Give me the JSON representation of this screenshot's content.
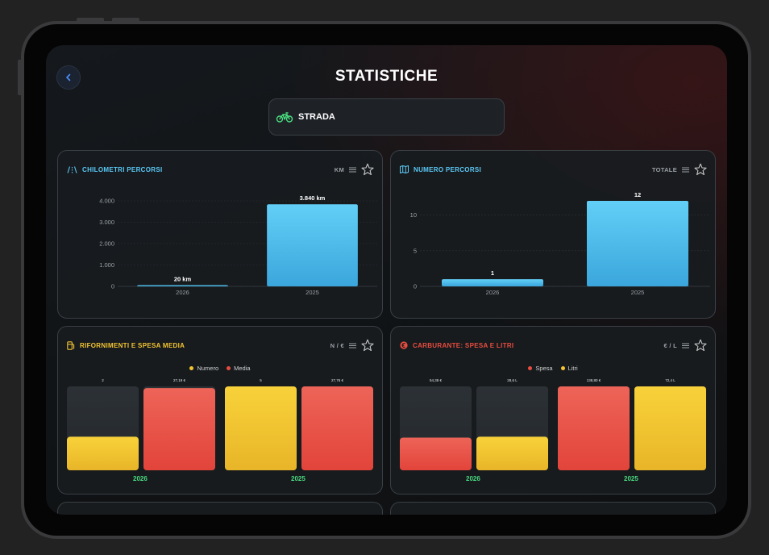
{
  "header": {
    "title": "STATISTICHE"
  },
  "selector": {
    "label": "STRADA",
    "icon": "motorcycle-icon"
  },
  "colors": {
    "blue": "#5bc8f5",
    "yellow": "#f5c531",
    "red": "#ea4c3f",
    "green": "#4ade80",
    "empty_bar": "#2a2e33"
  },
  "cards": [
    {
      "title": "CHILOMETRI PERCORSI",
      "unit": "KM",
      "title_color": "#5bc8f5",
      "icon": "road-icon"
    },
    {
      "title": "NUMERO PERCORSI",
      "unit": "TOTALE",
      "title_color": "#5bc8f5",
      "icon": "map-icon"
    },
    {
      "title": "RIFORNIMENTI E SPESA MEDIA",
      "unit": "N / €",
      "title_color": "#f5c531",
      "icon": "fuel-icon",
      "legend": [
        "Numero",
        "Media"
      ]
    },
    {
      "title": "CARBURANTE: SPESA E LITRI",
      "unit": "€ / L",
      "title_color": "#ea4c3f",
      "icon": "euro-icon",
      "legend": [
        "Spesa",
        "Litri"
      ]
    }
  ],
  "chart_data": [
    {
      "type": "bar",
      "categories": [
        "2026",
        "2025"
      ],
      "values": [
        20,
        3840
      ],
      "labels": [
        "20 km",
        "3.840 km"
      ],
      "yticks": [
        "4.000",
        "3.000",
        "2.000",
        "1.000",
        "0"
      ],
      "ylim": [
        0,
        4000
      ],
      "ylabel": "",
      "xlabel": ""
    },
    {
      "type": "bar",
      "categories": [
        "2026",
        "2025"
      ],
      "values": [
        1,
        12
      ],
      "labels": [
        "1",
        "12"
      ],
      "yticks": [
        "10",
        "5",
        "0"
      ],
      "ylim": [
        0,
        12
      ],
      "ylabel": "",
      "xlabel": ""
    },
    {
      "type": "bar",
      "categories": [
        "2026",
        "2025"
      ],
      "series": [
        {
          "name": "Numero",
          "values": [
            2,
            5
          ],
          "labels": [
            "2",
            "5"
          ],
          "fill": [
            0.4,
            1.0
          ]
        },
        {
          "name": "Media",
          "values": [
            27.19,
            27.76
          ],
          "labels": [
            "27,19 €",
            "27,76 €"
          ],
          "fill": [
            0.98,
            1.0
          ]
        }
      ]
    },
    {
      "type": "bar",
      "categories": [
        "2026",
        "2025"
      ],
      "series": [
        {
          "name": "Spesa",
          "values": [
            54.38,
            138.8
          ],
          "labels": [
            "54,38 €",
            "138,80 €"
          ],
          "fill": [
            0.39,
            1.0
          ]
        },
        {
          "name": "Litri",
          "values": [
            28.6,
            72.4
          ],
          "labels": [
            "28,6 L",
            "72,4 L"
          ],
          "fill": [
            0.4,
            1.0
          ]
        }
      ]
    }
  ]
}
